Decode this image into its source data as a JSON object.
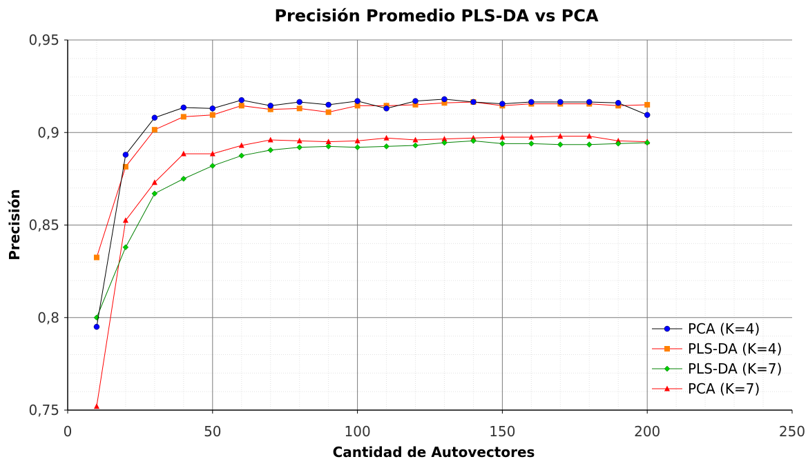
{
  "chart_data": {
    "type": "line",
    "title": "Precisión Promedio PLS-DA vs PCA",
    "xlabel": "Cantidad de Autovectores",
    "ylabel": "Precisión",
    "xlim": [
      0,
      250
    ],
    "ylim": [
      0.75,
      0.95
    ],
    "x_ticks": [
      0,
      50,
      100,
      150,
      200,
      250
    ],
    "x_tick_labels": [
      "0",
      "50",
      "100",
      "150",
      "200",
      "250"
    ],
    "y_ticks": [
      0.75,
      0.8,
      0.85,
      0.9,
      0.95
    ],
    "y_tick_labels": [
      "0,75",
      "0,8",
      "0,85",
      "0,9",
      "0,95"
    ],
    "grid": true,
    "legend_position": "bottom-right",
    "x": [
      10,
      20,
      30,
      40,
      50,
      60,
      70,
      80,
      90,
      100,
      110,
      120,
      130,
      140,
      150,
      160,
      170,
      180,
      190,
      200
    ],
    "series": [
      {
        "name": "PCA (K=4)",
        "color": "#0000ff",
        "line_color": "#000000",
        "marker": "circle",
        "values": [
          0.795,
          0.888,
          0.908,
          0.9135,
          0.913,
          0.9175,
          0.9145,
          0.9165,
          0.915,
          0.917,
          0.913,
          0.917,
          0.918,
          0.9165,
          0.9155,
          0.9165,
          0.9165,
          0.9165,
          0.916,
          0.9095
        ]
      },
      {
        "name": "PLS-DA (K=4)",
        "color": "#ff8000",
        "line_color": "#ff0000",
        "marker": "square",
        "values": [
          0.8325,
          0.8815,
          0.9015,
          0.9085,
          0.9095,
          0.9145,
          0.9125,
          0.913,
          0.911,
          0.9145,
          0.9145,
          0.915,
          0.916,
          0.9165,
          0.9145,
          0.9155,
          0.9155,
          0.9155,
          0.9145,
          0.915
        ]
      },
      {
        "name": "PLS-DA (K=7)",
        "color": "#00cc00",
        "line_color": "#008000",
        "marker": "diamond",
        "values": [
          0.8,
          0.838,
          0.867,
          0.875,
          0.882,
          0.8875,
          0.8905,
          0.892,
          0.8925,
          0.892,
          0.8925,
          0.893,
          0.8945,
          0.8955,
          0.894,
          0.894,
          0.8935,
          0.8935,
          0.894,
          0.8945
        ]
      },
      {
        "name": "PCA (K=7)",
        "color": "#ff0000",
        "line_color": "#ff0000",
        "marker": "triangle",
        "values": [
          0.752,
          0.8525,
          0.873,
          0.8885,
          0.8885,
          0.893,
          0.896,
          0.8955,
          0.895,
          0.8955,
          0.897,
          0.896,
          0.8965,
          0.897,
          0.8975,
          0.8975,
          0.898,
          0.898,
          0.8955,
          0.895
        ]
      }
    ]
  }
}
